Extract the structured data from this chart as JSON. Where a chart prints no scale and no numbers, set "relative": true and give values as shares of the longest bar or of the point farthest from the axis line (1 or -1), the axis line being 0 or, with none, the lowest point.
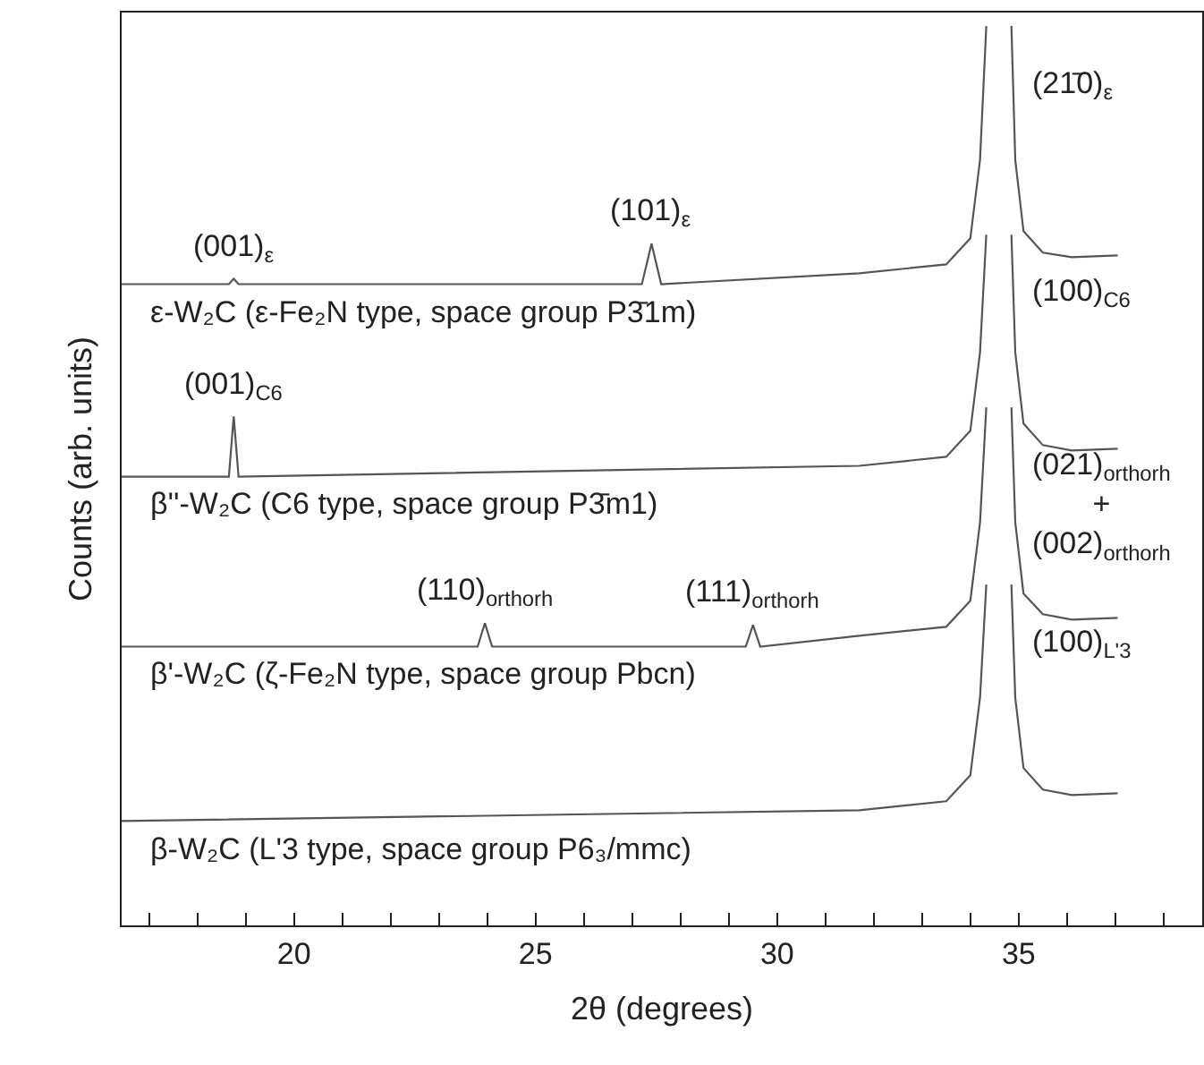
{
  "chart_data": {
    "type": "line",
    "relative": true,
    "xlabel": "2θ (degrees)",
    "ylabel": "Counts (arb. units)",
    "xlim": [
      16.43,
      38.8
    ],
    "xticks": [
      {
        "value": 17,
        "label": null
      },
      {
        "value": 18,
        "label": null
      },
      {
        "value": 19,
        "label": null
      },
      20,
      {
        "value": 21,
        "label": null
      },
      {
        "value": 22,
        "label": null
      },
      {
        "value": 23,
        "label": null
      },
      {
        "value": 24,
        "label": null
      },
      25,
      {
        "value": 26,
        "label": null
      },
      {
        "value": 27,
        "label": null
      },
      {
        "value": 28,
        "label": null
      },
      {
        "value": 29,
        "label": null
      },
      30,
      {
        "value": 31,
        "label": null
      },
      {
        "value": 32,
        "label": null
      },
      {
        "value": 33,
        "label": null
      },
      {
        "value": 34,
        "label": null
      },
      35,
      {
        "value": 36,
        "label": null
      },
      {
        "value": 37,
        "label": null
      },
      {
        "value": 38,
        "label": null
      }
    ],
    "legend": false,
    "marker": "none",
    "line_style": "solid",
    "tick_labels": "x",
    "series": [
      {
        "name": "ε-W₂C (ε-Fe₂N type, space group P3̄1m)",
        "color": "#555555",
        "x": [
          16.43,
          18.65,
          18.75,
          18.85,
          27.2,
          27.4,
          27.6,
          31.7,
          33.5,
          34.0,
          34.2,
          34.33,
          34.6,
          34.85,
          34.93,
          35.1,
          35.5,
          36.1,
          37.05
        ],
        "values": [
          0.713,
          0.713,
          0.719,
          0.713,
          0.713,
          0.758,
          0.713,
          0.725,
          0.735,
          0.764,
          0.851,
          1.0,
          null,
          1.0,
          0.851,
          0.772,
          0.748,
          0.743,
          0.745
        ]
      },
      {
        "name": "β''-W₂C (C6 type, space group P3̄m1)",
        "color": "#555555",
        "x": [
          16.43,
          18.65,
          18.75,
          18.85,
          31.7,
          33.5,
          34.0,
          34.2,
          34.33,
          34.6,
          34.85,
          34.93,
          35.1,
          35.5,
          36.1,
          37.05
        ],
        "values": [
          0.499,
          0.499,
          0.566,
          0.499,
          0.511,
          0.521,
          0.55,
          0.637,
          0.768,
          null,
          0.768,
          0.637,
          0.558,
          0.534,
          0.528,
          0.53
        ]
      },
      {
        "name": "β'-W₂C (ζ-Fe₂N type, space group Pbcn)",
        "color": "#555555",
        "x": [
          16.43,
          23.8,
          23.95,
          24.1,
          29.35,
          29.5,
          29.65,
          31.7,
          33.5,
          34.0,
          34.2,
          34.33,
          34.6,
          34.85,
          34.93,
          35.1,
          35.5,
          36.1,
          37.05
        ],
        "values": [
          0.31,
          0.31,
          0.336,
          0.31,
          0.31,
          0.334,
          0.31,
          0.322,
          0.332,
          0.361,
          0.448,
          0.576,
          null,
          0.576,
          0.448,
          0.369,
          0.346,
          0.34,
          0.342
        ]
      },
      {
        "name": "β-W₂C (L'3 type, space group P6₃/mmc)",
        "color": "#555555",
        "x": [
          16.43,
          31.7,
          33.5,
          34.0,
          34.2,
          34.33,
          34.6,
          34.85,
          34.93,
          35.1,
          35.5,
          36.1,
          37.05
        ],
        "values": [
          0.116,
          0.128,
          0.138,
          0.167,
          0.253,
          0.379,
          null,
          0.379,
          0.253,
          0.175,
          0.151,
          0.145,
          0.147
        ]
      }
    ],
    "annotations": [
      {
        "text": "(001)$_{ε}$",
        "x": 18.75,
        "y": 0.719
      },
      {
        "text": "(101)$_{ε}$",
        "x": 27.4,
        "y": 0.758
      },
      "(21̄0)$_{ε}$",
      {
        "text": "(001)$_{C6}$",
        "x": 18.75,
        "y": 0.566
      },
      "(100)$_{C6}$",
      {
        "text": "(110)$_{orthorh}$",
        "x": 23.95,
        "y": 0.336
      },
      {
        "text": "(111)$_{orthorh}$",
        "x": 29.5,
        "y": 0.334
      },
      "(021)$_{orthorh}$\n+\n(002)$_{orthorh}$",
      "(100)$_{L'3}$"
    ]
  }
}
